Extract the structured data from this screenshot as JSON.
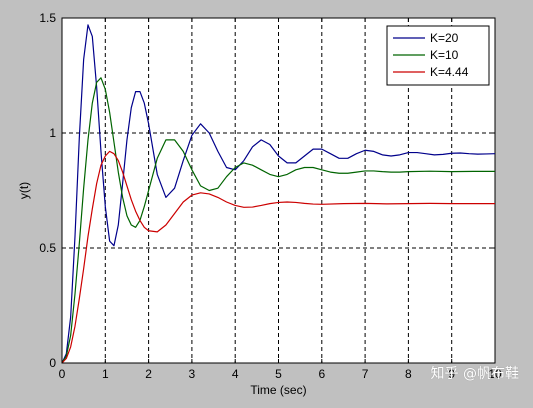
{
  "chart_data": {
    "type": "line",
    "xlabel": "Time (sec)",
    "ylabel": "y(t)",
    "xlim": [
      0,
      10
    ],
    "ylim": [
      0,
      1.5
    ],
    "xticks": [
      0,
      1,
      2,
      3,
      4,
      5,
      6,
      7,
      8,
      9,
      10
    ],
    "yticks": [
      0,
      0.5,
      1,
      1.5
    ],
    "ytick_labels": [
      "0",
      "0.5",
      "1",
      "1.5"
    ],
    "grid": true,
    "legend_position": "top-right",
    "series": [
      {
        "name": "K=20",
        "color": "#00008b",
        "points": [
          [
            0,
            0
          ],
          [
            0.1,
            0.04
          ],
          [
            0.2,
            0.2
          ],
          [
            0.3,
            0.55
          ],
          [
            0.4,
            0.98
          ],
          [
            0.5,
            1.32
          ],
          [
            0.6,
            1.47
          ],
          [
            0.7,
            1.42
          ],
          [
            0.8,
            1.2
          ],
          [
            0.9,
            0.92
          ],
          [
            1.0,
            0.68
          ],
          [
            1.1,
            0.53
          ],
          [
            1.2,
            0.51
          ],
          [
            1.3,
            0.6
          ],
          [
            1.4,
            0.78
          ],
          [
            1.5,
            0.97
          ],
          [
            1.6,
            1.11
          ],
          [
            1.7,
            1.18
          ],
          [
            1.8,
            1.18
          ],
          [
            1.9,
            1.13
          ],
          [
            2.0,
            1.04
          ],
          [
            2.2,
            0.82
          ],
          [
            2.4,
            0.72
          ],
          [
            2.6,
            0.76
          ],
          [
            2.8,
            0.88
          ],
          [
            3.0,
            0.99
          ],
          [
            3.2,
            1.04
          ],
          [
            3.4,
            1.0
          ],
          [
            3.6,
            0.92
          ],
          [
            3.8,
            0.85
          ],
          [
            4.0,
            0.84
          ],
          [
            4.2,
            0.88
          ],
          [
            4.4,
            0.94
          ],
          [
            4.6,
            0.97
          ],
          [
            4.8,
            0.95
          ],
          [
            5.0,
            0.9
          ],
          [
            5.2,
            0.87
          ],
          [
            5.4,
            0.87
          ],
          [
            5.6,
            0.9
          ],
          [
            5.8,
            0.93
          ],
          [
            6.0,
            0.93
          ],
          [
            6.2,
            0.91
          ],
          [
            6.4,
            0.89
          ],
          [
            6.6,
            0.89
          ],
          [
            6.8,
            0.91
          ],
          [
            7.0,
            0.925
          ],
          [
            7.2,
            0.92
          ],
          [
            7.4,
            0.905
          ],
          [
            7.6,
            0.9
          ],
          [
            7.8,
            0.905
          ],
          [
            8.0,
            0.915
          ],
          [
            8.2,
            0.915
          ],
          [
            8.4,
            0.91
          ],
          [
            8.6,
            0.905
          ],
          [
            8.8,
            0.907
          ],
          [
            9.0,
            0.912
          ],
          [
            9.2,
            0.913
          ],
          [
            9.4,
            0.91
          ],
          [
            9.6,
            0.908
          ],
          [
            9.8,
            0.909
          ],
          [
            10.0,
            0.91
          ]
        ]
      },
      {
        "name": "K=10",
        "color": "#006400",
        "points": [
          [
            0,
            0
          ],
          [
            0.1,
            0.03
          ],
          [
            0.2,
            0.12
          ],
          [
            0.3,
            0.3
          ],
          [
            0.4,
            0.52
          ],
          [
            0.5,
            0.76
          ],
          [
            0.6,
            0.97
          ],
          [
            0.7,
            1.13
          ],
          [
            0.8,
            1.22
          ],
          [
            0.9,
            1.24
          ],
          [
            1.0,
            1.19
          ],
          [
            1.1,
            1.09
          ],
          [
            1.2,
            0.96
          ],
          [
            1.3,
            0.83
          ],
          [
            1.4,
            0.72
          ],
          [
            1.5,
            0.64
          ],
          [
            1.6,
            0.6
          ],
          [
            1.7,
            0.59
          ],
          [
            1.8,
            0.62
          ],
          [
            1.9,
            0.68
          ],
          [
            2.0,
            0.75
          ],
          [
            2.2,
            0.89
          ],
          [
            2.4,
            0.97
          ],
          [
            2.6,
            0.97
          ],
          [
            2.8,
            0.92
          ],
          [
            3.0,
            0.84
          ],
          [
            3.2,
            0.77
          ],
          [
            3.4,
            0.75
          ],
          [
            3.6,
            0.76
          ],
          [
            3.8,
            0.81
          ],
          [
            4.0,
            0.85
          ],
          [
            4.2,
            0.87
          ],
          [
            4.4,
            0.86
          ],
          [
            4.6,
            0.84
          ],
          [
            4.8,
            0.82
          ],
          [
            5.0,
            0.81
          ],
          [
            5.2,
            0.82
          ],
          [
            5.4,
            0.84
          ],
          [
            5.6,
            0.85
          ],
          [
            5.8,
            0.85
          ],
          [
            6.0,
            0.84
          ],
          [
            6.2,
            0.83
          ],
          [
            6.4,
            0.825
          ],
          [
            6.6,
            0.825
          ],
          [
            6.8,
            0.83
          ],
          [
            7.0,
            0.835
          ],
          [
            7.2,
            0.835
          ],
          [
            7.4,
            0.832
          ],
          [
            7.6,
            0.83
          ],
          [
            7.8,
            0.83
          ],
          [
            8.0,
            0.832
          ],
          [
            8.5,
            0.834
          ],
          [
            9.0,
            0.832
          ],
          [
            9.5,
            0.833
          ],
          [
            10.0,
            0.833
          ]
        ]
      },
      {
        "name": "K=4.44",
        "color": "#cc0000",
        "points": [
          [
            0,
            0
          ],
          [
            0.1,
            0.02
          ],
          [
            0.2,
            0.07
          ],
          [
            0.3,
            0.16
          ],
          [
            0.4,
            0.28
          ],
          [
            0.5,
            0.41
          ],
          [
            0.6,
            0.55
          ],
          [
            0.7,
            0.67
          ],
          [
            0.8,
            0.78
          ],
          [
            0.9,
            0.86
          ],
          [
            1.0,
            0.9
          ],
          [
            1.1,
            0.92
          ],
          [
            1.2,
            0.91
          ],
          [
            1.3,
            0.88
          ],
          [
            1.4,
            0.83
          ],
          [
            1.5,
            0.77
          ],
          [
            1.6,
            0.71
          ],
          [
            1.7,
            0.66
          ],
          [
            1.8,
            0.62
          ],
          [
            1.9,
            0.59
          ],
          [
            2.0,
            0.575
          ],
          [
            2.2,
            0.57
          ],
          [
            2.4,
            0.6
          ],
          [
            2.6,
            0.65
          ],
          [
            2.8,
            0.7
          ],
          [
            3.0,
            0.73
          ],
          [
            3.2,
            0.74
          ],
          [
            3.4,
            0.735
          ],
          [
            3.6,
            0.72
          ],
          [
            3.8,
            0.7
          ],
          [
            4.0,
            0.685
          ],
          [
            4.2,
            0.677
          ],
          [
            4.4,
            0.678
          ],
          [
            4.6,
            0.685
          ],
          [
            4.8,
            0.693
          ],
          [
            5.0,
            0.698
          ],
          [
            5.2,
            0.7
          ],
          [
            5.4,
            0.698
          ],
          [
            5.6,
            0.694
          ],
          [
            5.8,
            0.691
          ],
          [
            6.0,
            0.69
          ],
          [
            6.5,
            0.693
          ],
          [
            7.0,
            0.694
          ],
          [
            7.5,
            0.692
          ],
          [
            8.0,
            0.693
          ],
          [
            8.5,
            0.694
          ],
          [
            9.0,
            0.693
          ],
          [
            9.5,
            0.693
          ],
          [
            10.0,
            0.693
          ]
        ]
      }
    ]
  },
  "watermark_text": "知乎 @帆布鞋"
}
